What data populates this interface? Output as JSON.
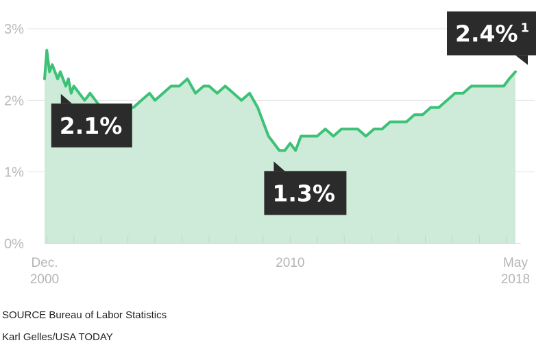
{
  "chart_data": {
    "type": "area",
    "title": "",
    "xlabel": "",
    "ylabel": "",
    "ylim": [
      0,
      3
    ],
    "y_tick_labels": [
      "3%",
      "2%",
      "1%",
      "0%"
    ],
    "y_tick_values": [
      3,
      2,
      1,
      0
    ],
    "x_tick_labels": [
      {
        "line1": "Dec.",
        "line2": "2000",
        "x": 2000.917
      },
      {
        "line1": "2010",
        "line2": "",
        "x": 2010.0
      },
      {
        "line1": "May",
        "line2": "2018",
        "x": 2018.333
      }
    ],
    "xlim": [
      2000.917,
      2018.333
    ],
    "grid": true,
    "series": [
      {
        "color": "#3dc177",
        "fill_color": "#cdebd8",
        "x": [
          2000.917,
          2001.0,
          2001.1,
          2001.2,
          2001.3,
          2001.4,
          2001.5,
          2001.6,
          2001.7,
          2001.8,
          2001.9,
          2002.0,
          2002.2,
          2002.4,
          2002.6,
          2002.8,
          2003.0,
          2003.3,
          2003.6,
          2003.9,
          2004.2,
          2004.5,
          2004.8,
          2005.0,
          2005.3,
          2005.6,
          2005.9,
          2006.2,
          2006.5,
          2006.8,
          2007.0,
          2007.3,
          2007.6,
          2007.9,
          2008.2,
          2008.5,
          2008.8,
          2009.0,
          2009.2,
          2009.4,
          2009.6,
          2009.8,
          2010.0,
          2010.2,
          2010.4,
          2010.7,
          2011.0,
          2011.3,
          2011.6,
          2011.9,
          2012.2,
          2012.5,
          2012.8,
          2013.1,
          2013.4,
          2013.7,
          2014.0,
          2014.3,
          2014.6,
          2014.9,
          2015.2,
          2015.5,
          2015.8,
          2016.1,
          2016.4,
          2016.7,
          2017.0,
          2017.3,
          2017.6,
          2017.9,
          2018.1,
          2018.333
        ],
        "y": [
          2.3,
          2.7,
          2.4,
          2.5,
          2.4,
          2.3,
          2.4,
          2.3,
          2.2,
          2.3,
          2.1,
          2.2,
          2.1,
          2.0,
          2.1,
          2.0,
          1.9,
          1.8,
          1.8,
          1.9,
          1.9,
          2.0,
          2.1,
          2.0,
          2.1,
          2.2,
          2.2,
          2.3,
          2.1,
          2.2,
          2.2,
          2.1,
          2.2,
          2.1,
          2.0,
          2.1,
          1.9,
          1.7,
          1.5,
          1.4,
          1.3,
          1.3,
          1.4,
          1.3,
          1.5,
          1.5,
          1.5,
          1.6,
          1.5,
          1.6,
          1.6,
          1.6,
          1.5,
          1.6,
          1.6,
          1.7,
          1.7,
          1.7,
          1.8,
          1.8,
          1.9,
          1.9,
          2.0,
          2.1,
          2.1,
          2.2,
          2.2,
          2.2,
          2.2,
          2.2,
          2.3,
          2.4
        ]
      }
    ],
    "annotations": [
      {
        "text": "2.1%",
        "sup": "",
        "x": 2001.9,
        "y": 2.1
      },
      {
        "text": "1.3%",
        "sup": "",
        "x": 2009.8,
        "y": 1.3
      },
      {
        "text": "2.4%",
        "sup": "1",
        "x": 2018.333,
        "y": 2.4
      }
    ],
    "annotation_color": "#2b2b2b"
  },
  "footer": {
    "source": "SOURCE Bureau of Labor Statistics",
    "credit": "Karl Gelles/USA TODAY"
  }
}
